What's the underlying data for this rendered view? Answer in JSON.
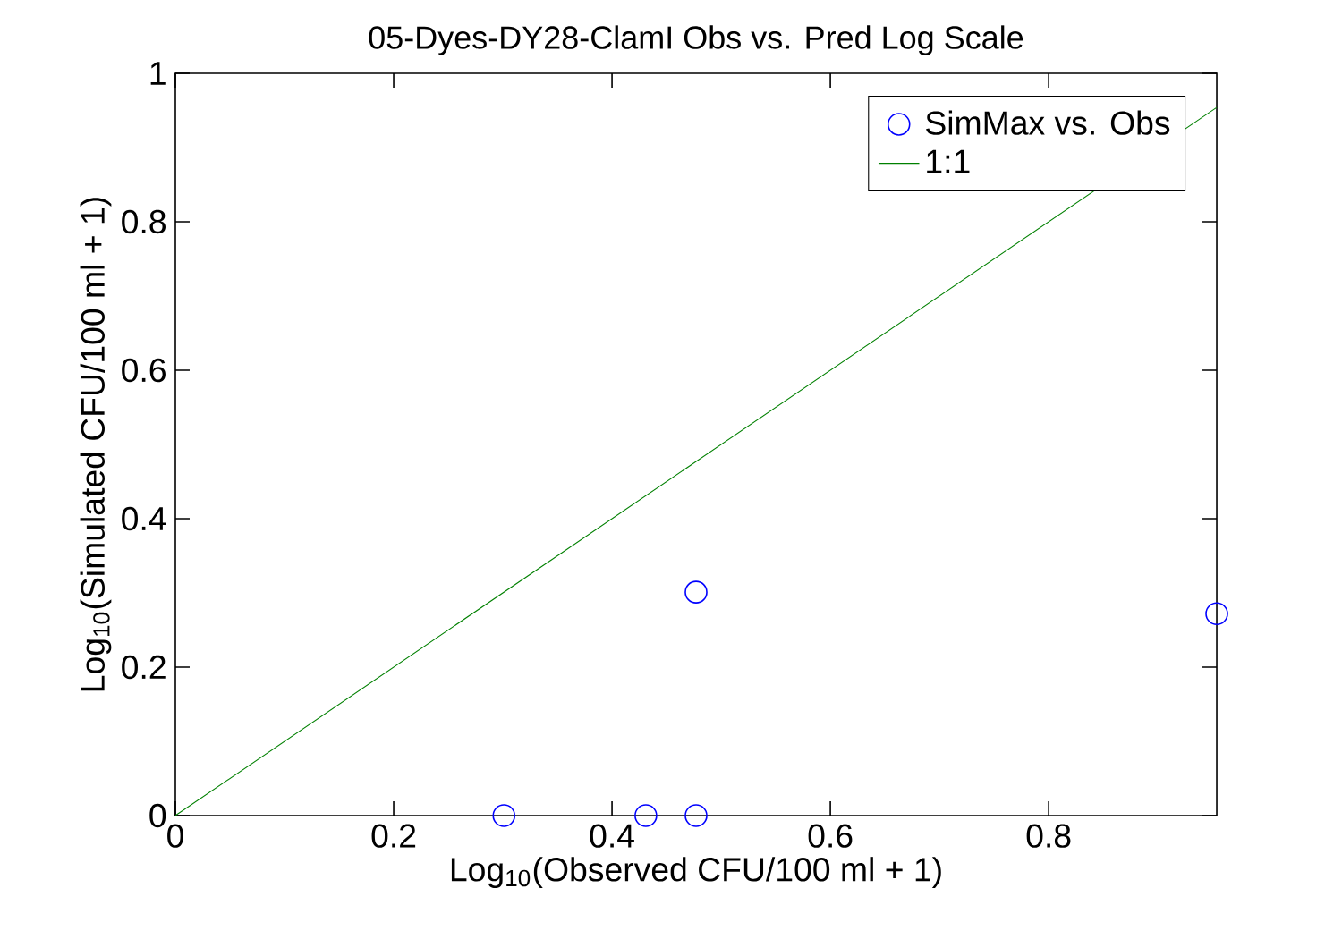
{
  "chart_data": {
    "type": "scatter",
    "title": "05-Dyes-DY28-ClamI Obs vs. Pred Log Scale",
    "xlabel": "Log$_{10}$(Observed CFU/100 ml + 1)",
    "ylabel": "Log$_{10}$(Simulated CFU/100 ml + 1)",
    "xlim": [
      0,
      0.954
    ],
    "ylim": [
      0,
      1
    ],
    "xticks": [
      0,
      0.2,
      0.4,
      0.6,
      0.8
    ],
    "yticks": [
      0,
      0.2,
      0.4,
      0.6,
      0.8,
      1
    ],
    "grid": false,
    "legend": "top right",
    "series": [
      {
        "name": "SimMax vs. Obs",
        "marker": "circle",
        "color": "#0000ff",
        "x": [
          0.301,
          0.431,
          0.477,
          0.477,
          0.954
        ],
        "values": [
          0,
          0,
          0,
          0.301,
          0.272
        ]
      },
      {
        "name": "1:1",
        "type": "line",
        "marker": "none",
        "line_style": "solid",
        "color": "#008000",
        "x": [
          0,
          0.954
        ],
        "values": [
          0,
          0.954
        ]
      }
    ]
  }
}
